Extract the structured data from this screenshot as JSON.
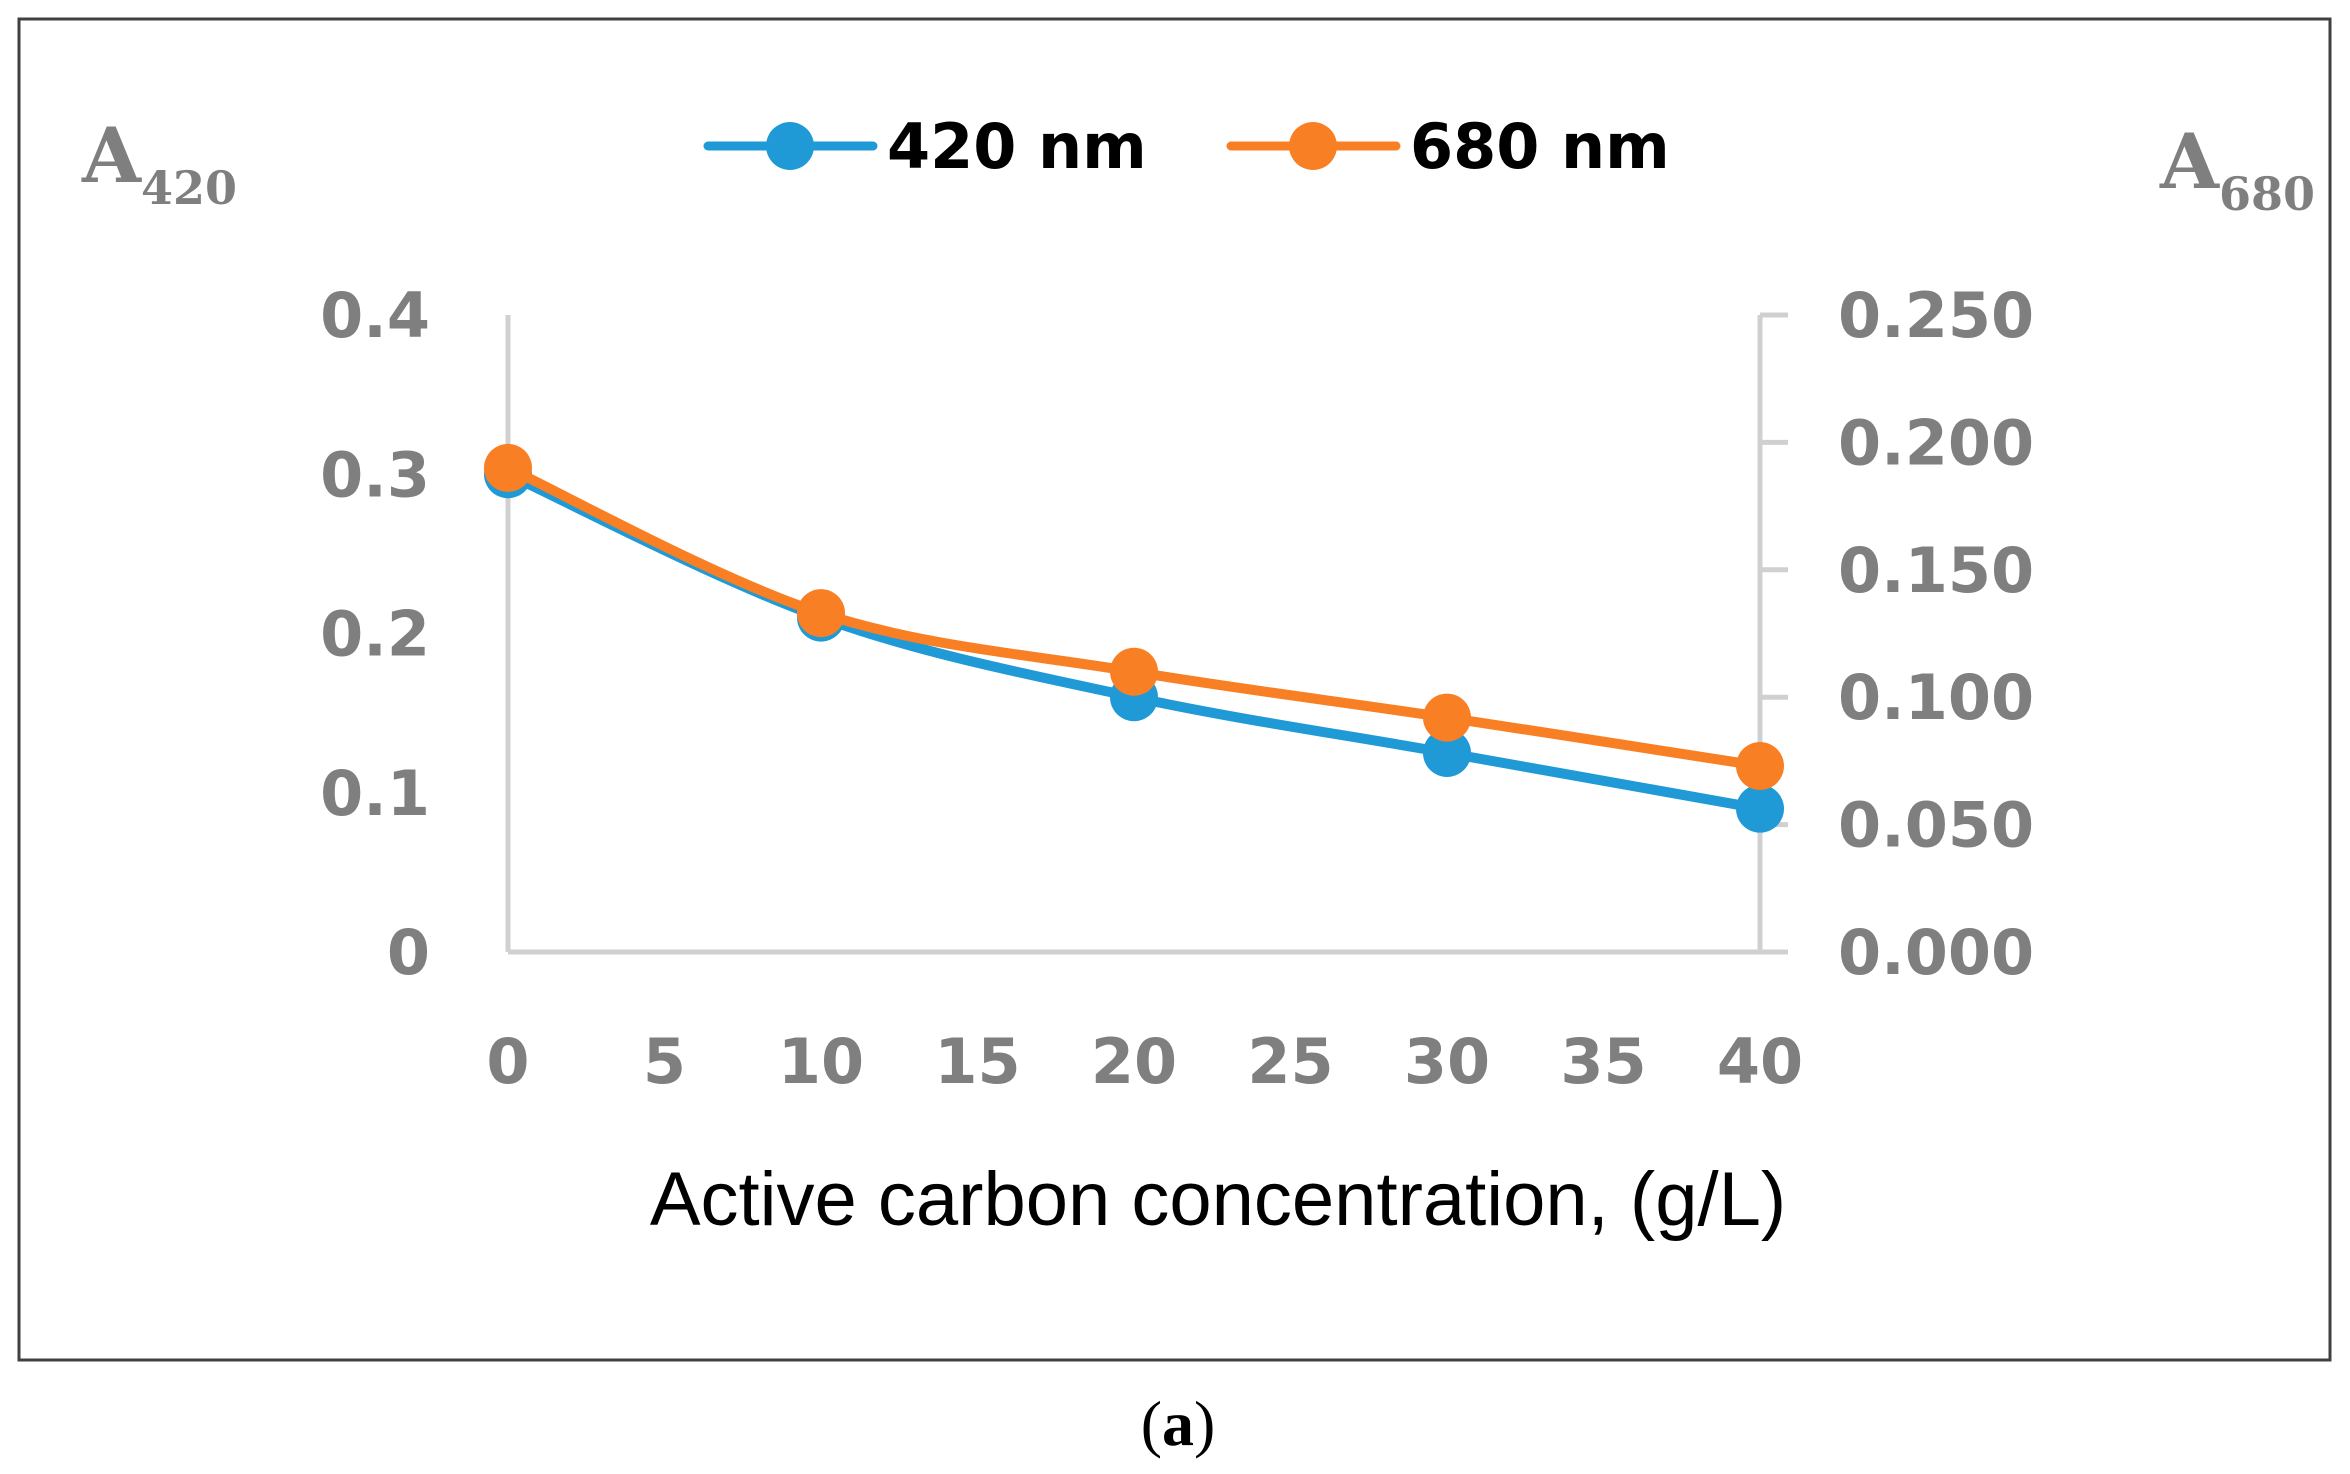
{
  "chart_data": {
    "type": "line",
    "x": [
      0,
      10,
      20,
      30,
      40
    ],
    "series": [
      {
        "name": "420 nm",
        "axis": "left",
        "color": "#1f9ad6",
        "values": [
          0.3,
          0.21,
          0.16,
          0.125,
          0.09
        ]
      },
      {
        "name": "680 nm",
        "axis": "right",
        "color": "#f97f25",
        "values": [
          0.19,
          0.133,
          0.11,
          0.092,
          0.073
        ]
      }
    ],
    "xlabel": "Active carbon concentration, (g/L)",
    "xlim": [
      0,
      40
    ],
    "xticks": [
      "0",
      "5",
      "10",
      "15",
      "20",
      "25",
      "30",
      "35",
      "40"
    ],
    "ylabel_left": {
      "main": "A",
      "sub": "420"
    },
    "ylim_left": [
      0,
      0.4
    ],
    "yticks_left": [
      "0",
      "0.1",
      "0.2",
      "0.3",
      "0.4"
    ],
    "ylabel_right": {
      "main": "A",
      "sub": "680"
    },
    "ylim_right": [
      0,
      0.25
    ],
    "yticks_right": [
      "0.000",
      "0.050",
      "0.100",
      "0.150",
      "0.200",
      "0.250"
    ],
    "legend_position": "top-center",
    "grid": false
  },
  "caption": {
    "open": "(",
    "letter": "a",
    "close": ")"
  }
}
